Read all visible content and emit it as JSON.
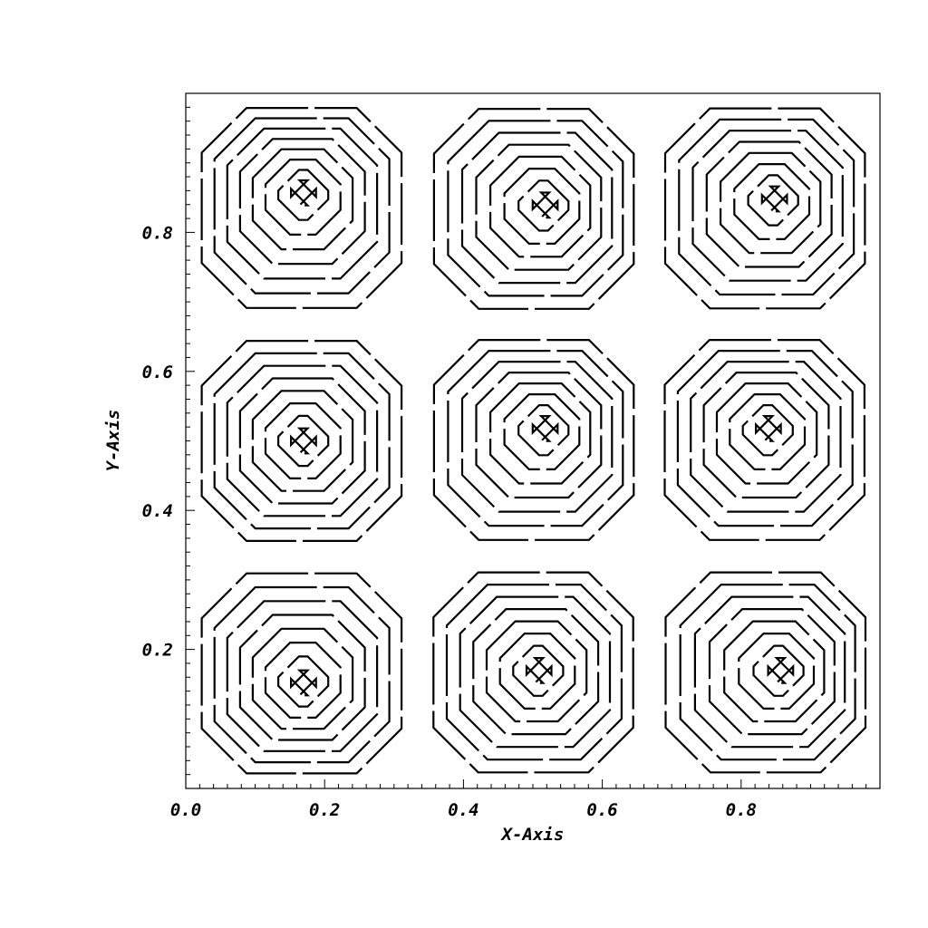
{
  "chart_data": {
    "type": "contour",
    "title": "",
    "xlabel": "X-Axis",
    "ylabel": "Y-Axis",
    "xlim": [
      0.0,
      1.0
    ],
    "ylim": [
      0.0,
      1.0
    ],
    "x_ticks": [
      0.0,
      0.2,
      0.4,
      0.6,
      0.8
    ],
    "x_tick_labels": [
      "0.0",
      "0.2",
      "0.4",
      "0.6",
      "0.8"
    ],
    "y_ticks": [
      0.2,
      0.4,
      0.6,
      0.8
    ],
    "y_tick_labels": [
      "0.2",
      "0.4",
      "0.6",
      "0.8"
    ],
    "grid": false,
    "legend": "none",
    "line_color": "#000000",
    "field": "sin(3*pi*x) * sin(3*pi*y)",
    "cells": [
      {
        "col": 0,
        "row": 0,
        "center": [
          0.17,
          0.15
        ]
      },
      {
        "col": 1,
        "row": 0,
        "center": [
          0.51,
          0.17
        ]
      },
      {
        "col": 2,
        "row": 0,
        "center": [
          0.86,
          0.17
        ]
      },
      {
        "col": 0,
        "row": 1,
        "center": [
          0.17,
          0.5
        ]
      },
      {
        "col": 1,
        "row": 1,
        "center": [
          0.52,
          0.52
        ]
      },
      {
        "col": 2,
        "row": 1,
        "center": [
          0.84,
          0.52
        ]
      },
      {
        "col": 0,
        "row": 2,
        "center": [
          0.17,
          0.86
        ]
      },
      {
        "col": 1,
        "row": 2,
        "center": [
          0.52,
          0.84
        ]
      },
      {
        "col": 2,
        "row": 2,
        "center": [
          0.85,
          0.85
        ]
      }
    ],
    "levels_per_cell": 8
  }
}
